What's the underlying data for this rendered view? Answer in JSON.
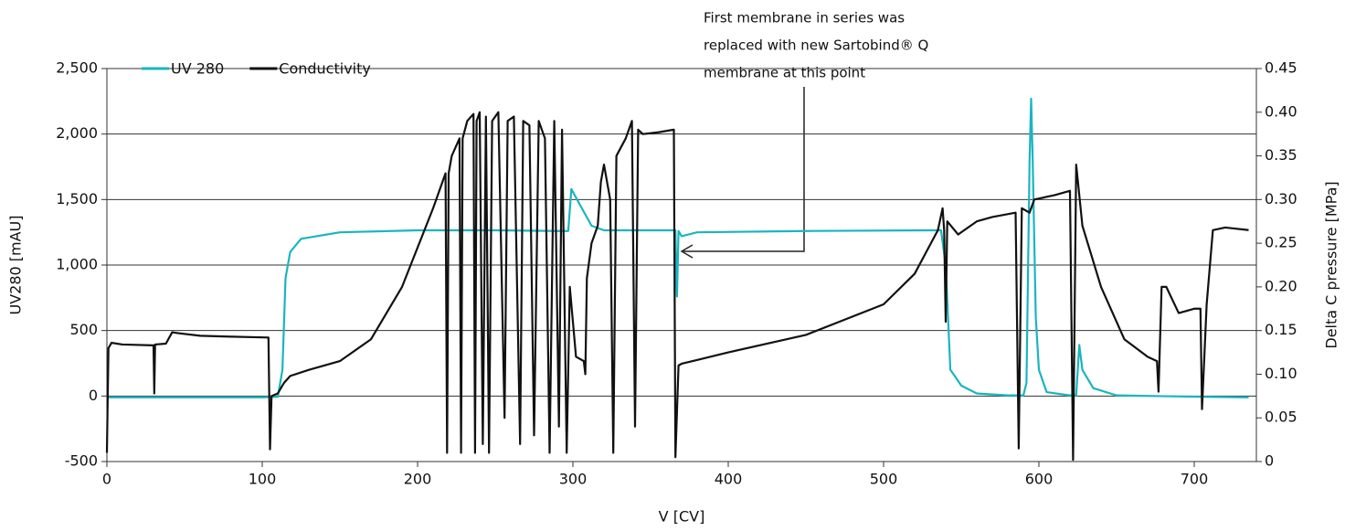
{
  "chart_data": {
    "type": "line",
    "annotation": [
      "First membrane in series was",
      "replaced with new Sartobind® Q",
      "membrane at this point"
    ],
    "xlabel": "V [CV]",
    "ylabel": "UV280 [mAU]",
    "y2label": "Delta C pressure [MPa]",
    "xlim": [
      0,
      740
    ],
    "xticks": [
      0,
      100,
      200,
      300,
      400,
      500,
      600,
      700
    ],
    "ylim": [
      -500,
      2500
    ],
    "yticks": [
      -500,
      0,
      {
        "value": 500,
        "label": "500"
      },
      {
        "value": 1000,
        "label": "1,000"
      },
      {
        "value": 1500,
        "label": "1,500"
      },
      {
        "value": 2000,
        "label": "2,000"
      },
      {
        "value": 2500,
        "label": "2,500"
      }
    ],
    "y2lim": [
      0,
      0.45
    ],
    "y2ticks": [
      0,
      0.05,
      {
        "value": 0.1,
        "label": "0.10"
      },
      0.15,
      {
        "value": 0.2,
        "label": "0.20"
      },
      0.25,
      {
        "value": 0.3,
        "label": "0.30"
      },
      0.35,
      {
        "value": 0.4,
        "label": "0.40"
      },
      0.45
    ],
    "grid": true,
    "legend": "top-left",
    "series": [
      {
        "name": "UV 280",
        "color": "#1ab5bf",
        "x": [
          0,
          100,
          110,
          113,
          115,
          118,
          125,
          150,
          200,
          250,
          290,
          297,
          299,
          305,
          312,
          320,
          360,
          366,
          367,
          368,
          370,
          380,
          450,
          530,
          537,
          540,
          543,
          546,
          550,
          560,
          580,
          590,
          592,
          594,
          595,
          596,
          598,
          600,
          605,
          620,
          624,
          626,
          628,
          635,
          650,
          700,
          735
        ],
        "values": [
          -10,
          -10,
          -5,
          200,
          900,
          1100,
          1200,
          1250,
          1265,
          1265,
          1260,
          1260,
          1580,
          1450,
          1300,
          1265,
          1265,
          1265,
          760,
          1260,
          1220,
          1250,
          1260,
          1265,
          1265,
          1000,
          200,
          150,
          80,
          20,
          5,
          5,
          100,
          1800,
          2270,
          1800,
          600,
          200,
          30,
          5,
          5,
          390,
          200,
          60,
          5,
          -5,
          -10
        ]
      },
      {
        "name": "Conductivity",
        "color": "#111111",
        "axis": "y2",
        "x": [
          0,
          1,
          3,
          10,
          30,
          30.5,
          31,
          38,
          42,
          46,
          60,
          80,
          104,
          105,
          106,
          110,
          114,
          118,
          130,
          150,
          170,
          190,
          210,
          218,
          219,
          220,
          222,
          227,
          228,
          229,
          232,
          236,
          237,
          238,
          240,
          242,
          244,
          246,
          248,
          252,
          256,
          258,
          262,
          266,
          268,
          272,
          275,
          278,
          282,
          285,
          288,
          291,
          293,
          296,
          298,
          302,
          307,
          308,
          309,
          312,
          316,
          318,
          320,
          324,
          326,
          328,
          334,
          338,
          340,
          342,
          345,
          355,
          365,
          366,
          368,
          370,
          400,
          450,
          500,
          520,
          535,
          538,
          539,
          540,
          541,
          548,
          560,
          570,
          585,
          587,
          589,
          594,
          597,
          610,
          620,
          622,
          624,
          628,
          640,
          655,
          670,
          676,
          677,
          679,
          682,
          690,
          700,
          704,
          705,
          708,
          712,
          720,
          735
        ],
        "values": [
          0.01,
          0.13,
          0.136,
          0.134,
          0.133,
          0.078,
          0.134,
          0.135,
          0.148,
          0.147,
          0.144,
          0.143,
          0.142,
          0.014,
          0.075,
          0.078,
          0.09,
          0.098,
          0.105,
          0.115,
          0.14,
          0.2,
          0.29,
          0.33,
          0.01,
          0.33,
          0.35,
          0.37,
          0.01,
          0.37,
          0.39,
          0.398,
          0.01,
          0.39,
          0.4,
          0.02,
          0.395,
          0.01,
          0.39,
          0.4,
          0.05,
          0.39,
          0.395,
          0.02,
          0.39,
          0.385,
          0.03,
          0.39,
          0.37,
          0.01,
          0.39,
          0.04,
          0.38,
          0.01,
          0.2,
          0.12,
          0.115,
          0.1,
          0.21,
          0.25,
          0.27,
          0.32,
          0.34,
          0.3,
          0.01,
          0.35,
          0.37,
          0.39,
          0.04,
          0.38,
          0.375,
          0.377,
          0.38,
          0.005,
          0.11,
          0.112,
          0.125,
          0.145,
          0.18,
          0.215,
          0.265,
          0.29,
          0.265,
          0.16,
          0.275,
          0.26,
          0.275,
          0.28,
          0.285,
          0.015,
          0.29,
          0.285,
          0.3,
          0.305,
          0.31,
          0.002,
          0.34,
          0.27,
          0.2,
          0.14,
          0.12,
          0.115,
          0.08,
          0.2,
          0.2,
          0.17,
          0.175,
          0.175,
          0.06,
          0.18,
          0.265,
          0.268,
          0.265
        ]
      }
    ]
  }
}
